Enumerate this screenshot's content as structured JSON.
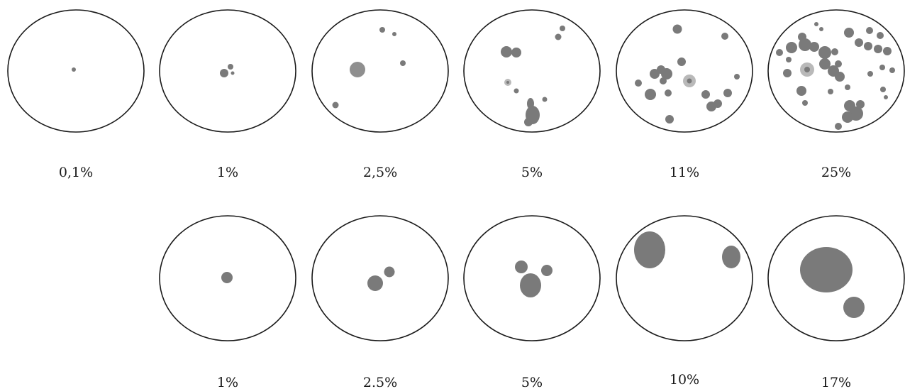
{
  "rows": [
    {
      "panels": [
        {
          "label": "0,1%",
          "spot_color": "#7a7a7a"
        },
        {
          "label": "1%",
          "spot_color": "#7a7a7a"
        },
        {
          "label": "2,5%",
          "spot_color": "#7a7a7a"
        },
        {
          "label": "5%",
          "spot_color": "#7a7a7a"
        },
        {
          "label": "11%",
          "spot_color": "#7a7a7a"
        },
        {
          "label": "25%",
          "spot_color": "#7a7a7a"
        }
      ]
    },
    {
      "panels": [
        {
          "label": "1%",
          "spot_color": "#7a7a7a"
        },
        {
          "label": "2.5%",
          "spot_color": "#7a7a7a"
        },
        {
          "label": "5%",
          "spot_color": "#7a7a7a"
        },
        {
          "label": "10%",
          "spot_color": "#7a7a7a"
        },
        {
          "label": "17%",
          "spot_color": "#7a7a7a"
        }
      ]
    }
  ]
}
